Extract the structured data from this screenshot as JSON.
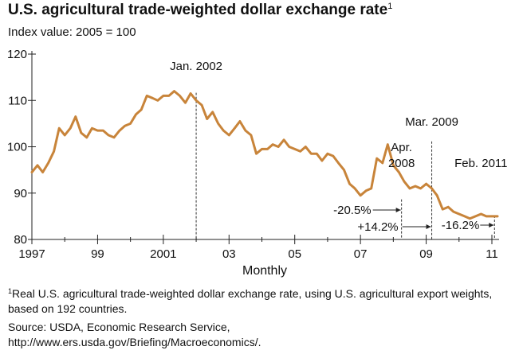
{
  "title": "U.S. agricultural trade-weighted dollar exchange rate",
  "title_note_marker": "1",
  "subtitle": "Index value: 2005 = 100",
  "footnote": {
    "marker": "1",
    "text": "Real U.S. agricultural trade-weighted dollar exchange rate, using U.S. agricultural export weights, based on 192 countries."
  },
  "source": {
    "line1": "Source: USDA, Economic Research Service,",
    "line2": "http://www.ers.usda.gov/Briefing/Macroeconomics/."
  },
  "chart_data": {
    "type": "line",
    "title": "U.S. agricultural trade-weighted dollar exchange rate",
    "xlabel": "Monthly",
    "ylabel": "",
    "xlim": [
      1997.0,
      2011.17
    ],
    "ylim": [
      80,
      120
    ],
    "yticks": [
      80,
      90,
      100,
      110,
      120
    ],
    "xticks": [
      {
        "value": 1997,
        "label": "1997"
      },
      {
        "value": 1999,
        "label": "99"
      },
      {
        "value": 2001,
        "label": "2001"
      },
      {
        "value": 2003,
        "label": "03"
      },
      {
        "value": 2005,
        "label": "05"
      },
      {
        "value": 2007,
        "label": "07"
      },
      {
        "value": 2009,
        "label": "09"
      },
      {
        "value": 2011,
        "label": "11"
      }
    ],
    "grid": false,
    "line_color": "#c8843a",
    "series": [
      {
        "x": [
          1997.0,
          1997.17,
          1997.33,
          1997.5,
          1997.67,
          1997.83,
          1998.0,
          1998.17,
          1998.33,
          1998.5,
          1998.67,
          1998.83,
          1999.0,
          1999.17,
          1999.33,
          1999.5,
          1999.67,
          1999.83,
          2000.0,
          2000.17,
          2000.33,
          2000.5,
          2000.67,
          2000.83,
          2001.0,
          2001.17,
          2001.33,
          2001.5,
          2001.67,
          2001.83,
          2002.0,
          2002.17,
          2002.33,
          2002.5,
          2002.67,
          2002.83,
          2003.0,
          2003.17,
          2003.33,
          2003.5,
          2003.67,
          2003.83,
          2004.0,
          2004.17,
          2004.33,
          2004.5,
          2004.67,
          2004.83,
          2005.0,
          2005.17,
          2005.33,
          2005.5,
          2005.67,
          2005.83,
          2006.0,
          2006.17,
          2006.33,
          2006.5,
          2006.67,
          2006.83,
          2007.0,
          2007.17,
          2007.33,
          2007.5,
          2007.67,
          2007.83,
          2008.0,
          2008.17,
          2008.33,
          2008.5,
          2008.67,
          2008.83,
          2009.0,
          2009.17,
          2009.33,
          2009.5,
          2009.67,
          2009.83,
          2010.0,
          2010.17,
          2010.33,
          2010.5,
          2010.67,
          2010.83,
          2011.0,
          2011.17
        ],
        "values": [
          94.5,
          96.0,
          94.5,
          96.5,
          99.0,
          104.0,
          102.5,
          104.0,
          106.5,
          103.0,
          102.0,
          104.0,
          103.5,
          103.5,
          102.5,
          102.0,
          103.5,
          104.5,
          105.0,
          107.0,
          108.0,
          111.0,
          110.5,
          110.0,
          111.0,
          111.0,
          112.0,
          111.0,
          109.5,
          111.5,
          110.0,
          109.0,
          106.0,
          107.5,
          105.0,
          103.5,
          102.5,
          104.0,
          105.5,
          103.5,
          102.5,
          98.5,
          99.5,
          99.5,
          100.5,
          100.0,
          101.5,
          100.0,
          99.5,
          99.0,
          100.0,
          98.5,
          98.5,
          97.0,
          98.5,
          98.0,
          96.5,
          95.0,
          92.0,
          91.0,
          89.5,
          90.5,
          91.0,
          97.5,
          96.5,
          100.5,
          96.0,
          94.5,
          92.5,
          91.0,
          91.5,
          91.0,
          92.0,
          91.0,
          89.5,
          86.5,
          87.0,
          86.0,
          85.5,
          85.0,
          84.5,
          85.0,
          85.5,
          85.0,
          85.0,
          85.0
        ]
      }
    ],
    "annotations": [
      {
        "label": "Jan. 2002",
        "x": 2002.0,
        "y": 112.0
      },
      {
        "label_lines": [
          "Apr.",
          "2008"
        ],
        "x": 2008.25,
        "y": 89.0
      },
      {
        "label": "Mar. 2009",
        "x": 2009.17,
        "y": 101.5
      },
      {
        "label": "Feb. 2011",
        "x": 2011.08,
        "y": 85.5
      }
    ],
    "change_labels": [
      {
        "label": "-20.5%",
        "from": 2002.0,
        "to": 2008.25
      },
      {
        "label": "+14.2%",
        "from": 2008.25,
        "to": 2009.17
      },
      {
        "label": "-16.2%",
        "from": 2009.17,
        "to": 2011.08
      }
    ]
  }
}
